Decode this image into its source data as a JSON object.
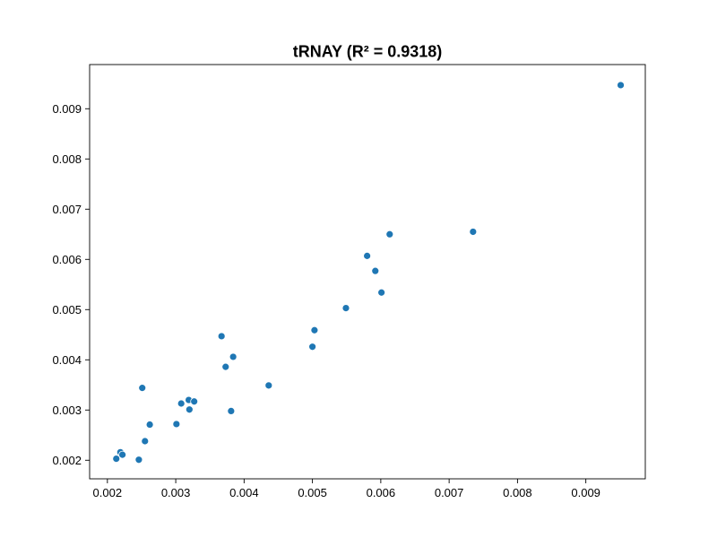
{
  "chart_data": {
    "type": "scatter",
    "title": "tRNAY (R² = 0.9318)",
    "xlabel": "",
    "ylabel": "",
    "xlim": [
      0.00174,
      0.00987
    ],
    "ylim": [
      0.00163,
      0.00988
    ],
    "x_ticks": [
      "0.002",
      "0.003",
      "0.004",
      "0.005",
      "0.006",
      "0.007",
      "0.008",
      "0.009"
    ],
    "y_ticks": [
      "0.002",
      "0.003",
      "0.004",
      "0.005",
      "0.006",
      "0.007",
      "0.008",
      "0.009"
    ],
    "grid": false,
    "legend": "none",
    "point_color": "#1f77b4",
    "series": [
      {
        "x": [
          0.00213,
          0.00219,
          0.00222,
          0.00246,
          0.00255,
          0.00251,
          0.00262,
          0.00301,
          0.00308,
          0.00319,
          0.0032,
          0.00327,
          0.00367,
          0.00373,
          0.00381,
          0.00384,
          0.00436,
          0.005,
          0.00503,
          0.00549,
          0.0058,
          0.00592,
          0.00601,
          0.00613,
          0.00735,
          0.00951
        ],
        "y": [
          0.00203,
          0.00216,
          0.00211,
          0.00201,
          0.00238,
          0.00344,
          0.00271,
          0.00272,
          0.00313,
          0.0032,
          0.00301,
          0.00317,
          0.00447,
          0.00386,
          0.00298,
          0.00406,
          0.00349,
          0.00426,
          0.00459,
          0.00503,
          0.00607,
          0.00577,
          0.00534,
          0.0065,
          0.00655,
          0.00947
        ]
      }
    ]
  }
}
